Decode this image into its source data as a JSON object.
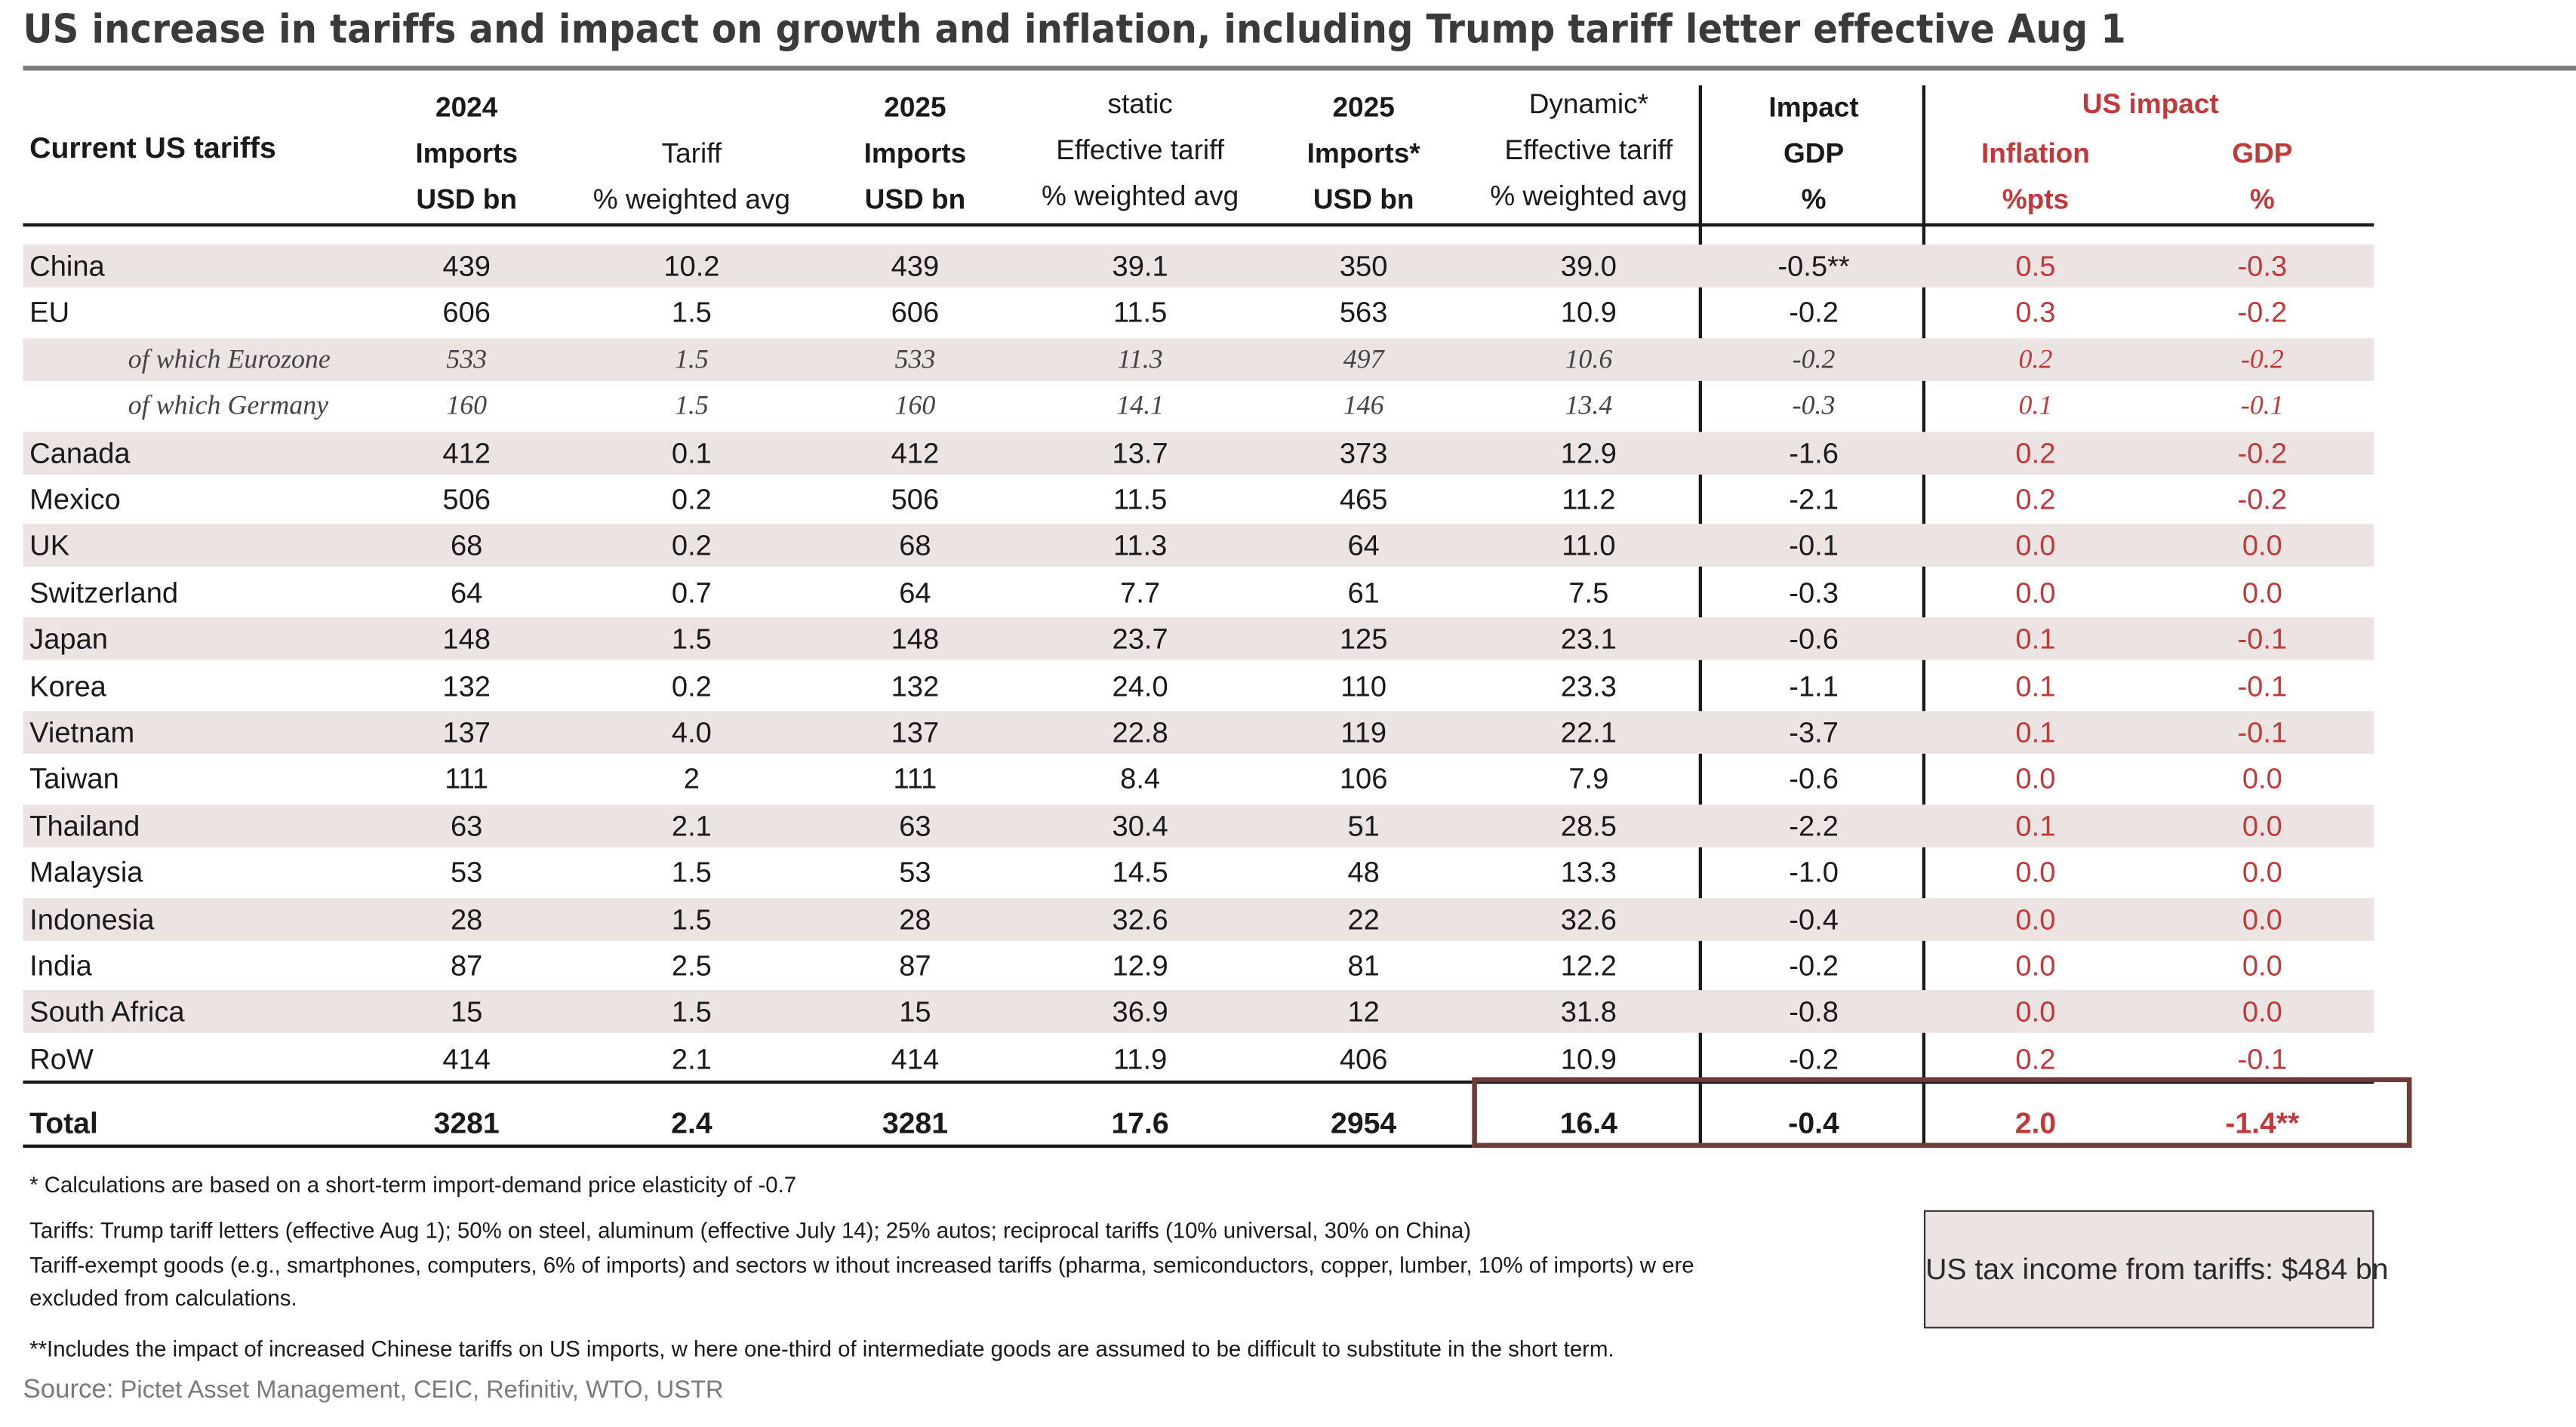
{
  "title": "US increase in tariffs and impact on growth and inflation, including Trump tariff letter effective Aug 1",
  "header": {
    "label": "Current US tariffs",
    "imports_2024": [
      "2024",
      "Imports",
      "USD bn"
    ],
    "tariff": [
      "",
      "Tariff",
      "% weighted avg"
    ],
    "imports_2025": [
      "2025",
      "Imports",
      "USD bn"
    ],
    "static_tariff": [
      "static",
      "Effective tariff",
      "% weighted avg"
    ],
    "imports_2025_dyn": [
      "2025",
      "Imports*",
      "USD bn"
    ],
    "dynamic_tariff": [
      "Dynamic*",
      "Effective tariff",
      "% weighted avg"
    ],
    "impact_gdp": [
      "Impact",
      "GDP",
      "%"
    ],
    "us_impact": "US impact",
    "inflation": [
      "Inflation",
      "%pts"
    ],
    "gdp": [
      "GDP",
      "%"
    ]
  },
  "rows": [
    {
      "name": "China",
      "imp24": "439",
      "tariff": "10.2",
      "imp25": "439",
      "static": "39.1",
      "imp25d": "350",
      "dyn": "39.0",
      "impact": "-0.5**",
      "infl": "0.5",
      "gdp": "-0.3"
    },
    {
      "name": "EU",
      "imp24": "606",
      "tariff": "1.5",
      "imp25": "606",
      "static": "11.5",
      "imp25d": "563",
      "dyn": "10.9",
      "impact": "-0.2",
      "infl": "0.3",
      "gdp": "-0.2"
    },
    {
      "name": "of which Eurozone",
      "imp24": "533",
      "tariff": "1.5",
      "imp25": "533",
      "static": "11.3",
      "imp25d": "497",
      "dyn": "10.6",
      "impact": "-0.2",
      "infl": "0.2",
      "gdp": "-0.2"
    },
    {
      "name": "of which Germany",
      "imp24": "160",
      "tariff": "1.5",
      "imp25": "160",
      "static": "14.1",
      "imp25d": "146",
      "dyn": "13.4",
      "impact": "-0.3",
      "infl": "0.1",
      "gdp": "-0.1"
    },
    {
      "name": "Canada",
      "imp24": "412",
      "tariff": "0.1",
      "imp25": "412",
      "static": "13.7",
      "imp25d": "373",
      "dyn": "12.9",
      "impact": "-1.6",
      "infl": "0.2",
      "gdp": "-0.2"
    },
    {
      "name": "Mexico",
      "imp24": "506",
      "tariff": "0.2",
      "imp25": "506",
      "static": "11.5",
      "imp25d": "465",
      "dyn": "11.2",
      "impact": "-2.1",
      "infl": "0.2",
      "gdp": "-0.2"
    },
    {
      "name": "UK",
      "imp24": "68",
      "tariff": "0.2",
      "imp25": "68",
      "static": "11.3",
      "imp25d": "64",
      "dyn": "11.0",
      "impact": "-0.1",
      "infl": "0.0",
      "gdp": "0.0"
    },
    {
      "name": "Switzerland",
      "imp24": "64",
      "tariff": "0.7",
      "imp25": "64",
      "static": "7.7",
      "imp25d": "61",
      "dyn": "7.5",
      "impact": "-0.3",
      "infl": "0.0",
      "gdp": "0.0"
    },
    {
      "name": "Japan",
      "imp24": "148",
      "tariff": "1.5",
      "imp25": "148",
      "static": "23.7",
      "imp25d": "125",
      "dyn": "23.1",
      "impact": "-0.6",
      "infl": "0.1",
      "gdp": "-0.1"
    },
    {
      "name": "Korea",
      "imp24": "132",
      "tariff": "0.2",
      "imp25": "132",
      "static": "24.0",
      "imp25d": "110",
      "dyn": "23.3",
      "impact": "-1.1",
      "infl": "0.1",
      "gdp": "-0.1"
    },
    {
      "name": "Vietnam",
      "imp24": "137",
      "tariff": "4.0",
      "imp25": "137",
      "static": "22.8",
      "imp25d": "119",
      "dyn": "22.1",
      "impact": "-3.7",
      "infl": "0.1",
      "gdp": "-0.1"
    },
    {
      "name": "Taiwan",
      "imp24": "111",
      "tariff": "2",
      "imp25": "111",
      "static": "8.4",
      "imp25d": "106",
      "dyn": "7.9",
      "impact": "-0.6",
      "infl": "0.0",
      "gdp": "0.0"
    },
    {
      "name": "Thailand",
      "imp24": "63",
      "tariff": "2.1",
      "imp25": "63",
      "static": "30.4",
      "imp25d": "51",
      "dyn": "28.5",
      "impact": "-2.2",
      "infl": "0.1",
      "gdp": "0.0"
    },
    {
      "name": "Malaysia",
      "imp24": "53",
      "tariff": "1.5",
      "imp25": "53",
      "static": "14.5",
      "imp25d": "48",
      "dyn": "13.3",
      "impact": "-1.0",
      "infl": "0.0",
      "gdp": "0.0"
    },
    {
      "name": "Indonesia",
      "imp24": "28",
      "tariff": "1.5",
      "imp25": "28",
      "static": "32.6",
      "imp25d": "22",
      "dyn": "32.6",
      "impact": "-0.4",
      "infl": "0.0",
      "gdp": "0.0"
    },
    {
      "name": "India",
      "imp24": "87",
      "tariff": "2.5",
      "imp25": "87",
      "static": "12.9",
      "imp25d": "81",
      "dyn": "12.2",
      "impact": "-0.2",
      "infl": "0.0",
      "gdp": "0.0"
    },
    {
      "name": "South Africa",
      "imp24": "15",
      "tariff": "1.5",
      "imp25": "15",
      "static": "36.9",
      "imp25d": "12",
      "dyn": "31.8",
      "impact": "-0.8",
      "infl": "0.0",
      "gdp": "0.0"
    },
    {
      "name": "RoW",
      "imp24": "414",
      "tariff": "2.1",
      "imp25": "414",
      "static": "11.9",
      "imp25d": "406",
      "dyn": "10.9",
      "impact": "-0.2",
      "infl": "0.2",
      "gdp": "-0.1"
    }
  ],
  "total": {
    "name": "Total",
    "imp24": "3281",
    "tariff": "2.4",
    "imp25": "3281",
    "static": "17.6",
    "imp25d": "2954",
    "dyn": "16.4",
    "impact": "-0.4",
    "infl": "2.0",
    "gdp": "-1.4**"
  },
  "footnotes": {
    "elasticity": "* Calculations are based on a short-term import-demand price elasticity of -0.7",
    "tariffs_1": "Tariffs: Trump tariff letters (effective Aug 1); 50% on steel, aluminum (effective July 14); 25% autos; reciprocal tariffs (10% universal, 30% on China)",
    "tariffs_2": "Tariff-exempt goods (e.g., smartphones, computers, 6% of imports)  and sectors w ithout increased tariffs (pharma, semiconductors, copper, lumber, 10% of imports) w ere",
    "tariffs_3": "excluded from calculations.",
    "china": "**Includes the impact of increased Chinese tariffs on US imports, w here one-third of intermediate goods are assumed to be difficult to substitute in the short term."
  },
  "source_label": "Source:",
  "source_text": "Pictet Asset Management, CEIC, Refinitiv, WTO, USTR",
  "tax_box": "US tax income from tariffs: $484 bn"
}
